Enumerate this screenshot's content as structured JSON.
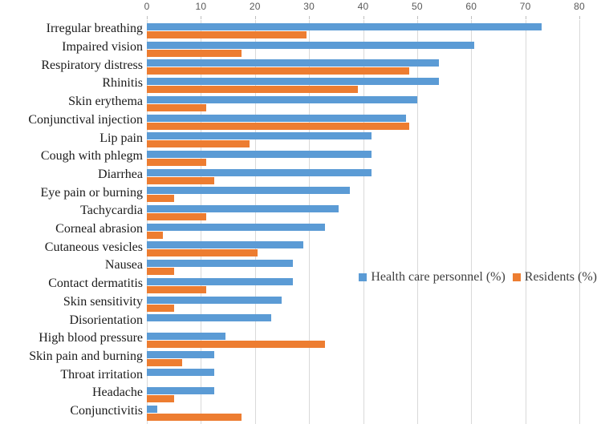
{
  "chart_data": {
    "type": "bar",
    "orientation": "horizontal",
    "title": "",
    "xlabel": "",
    "ylabel": "",
    "xlim": [
      0,
      80
    ],
    "xticks": [
      0,
      10,
      20,
      30,
      40,
      50,
      60,
      70,
      80
    ],
    "grid": true,
    "axis_position": "top",
    "legend_position": "middle-right",
    "categories": [
      "Irregular breathing",
      "Impaired vision",
      "Respiratory distress",
      "Rhinitis",
      "Skin erythema",
      "Conjunctival injection",
      "Lip pain",
      "Cough with phlegm",
      "Diarrhea",
      "Eye pain or burning",
      "Tachycardia",
      "Corneal abrasion",
      "Cutaneous vesicles",
      "Nausea",
      "Contact dermatitis",
      "Skin sensitivity",
      "Disorientation",
      "High blood pressure",
      "Skin pain and burning",
      "Throat irritation",
      "Headache",
      "Conjunctivitis"
    ],
    "series": [
      {
        "name": "Health care personnel (%)",
        "color": "#5B9BD5",
        "values": [
          73,
          60.5,
          54,
          54,
          50,
          48,
          41.5,
          41.5,
          41.5,
          37.5,
          35.5,
          33,
          29,
          27,
          27,
          25,
          23,
          14.5,
          12.5,
          12.5,
          12.5,
          2
        ]
      },
      {
        "name": "Residents (%)",
        "color": "#ED7D31",
        "values": [
          29.5,
          17.5,
          48.5,
          39,
          11,
          48.5,
          19,
          11,
          12.5,
          5,
          11,
          3,
          20.5,
          5,
          11,
          5,
          0,
          33,
          6.5,
          0,
          5,
          17.5
        ]
      }
    ],
    "colors": {
      "gridline": "#d9d9d9",
      "tick": "#bfbfbf",
      "axis_text": "#595959",
      "category_text": "#1b1b1b",
      "legend_text": "#404040"
    }
  }
}
